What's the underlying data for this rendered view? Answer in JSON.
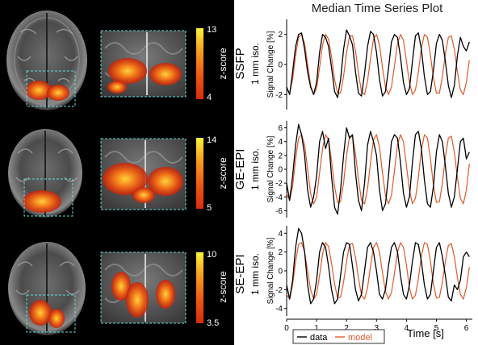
{
  "figure": {
    "title": "Median Time Series Plot",
    "ylabel": "Signal Change [%]",
    "xlabel": "Time [s]",
    "colorbar_label": "z-score",
    "legend": [
      {
        "label": "data",
        "color": "#000000"
      },
      {
        "label": "model",
        "color": "#e05a2b"
      }
    ]
  },
  "rows": [
    {
      "method": "SSFP",
      "resolution": "1 mm iso.",
      "cbar_max": "13",
      "cbar_min": "4"
    },
    {
      "method": "GE-EPI",
      "resolution": "1 mm iso.",
      "cbar_max": "14",
      "cbar_min": "5"
    },
    {
      "method": "SE-EPI",
      "resolution": "1 mm iso.",
      "cbar_max": "10",
      "cbar_min": "3.5"
    }
  ],
  "chart_data": [
    {
      "type": "line",
      "ylabel": "Signal Change [%]",
      "ylim": [
        -3,
        3
      ],
      "yticks": [
        -2,
        0,
        2
      ],
      "xlim": [
        0,
        6.2
      ],
      "xticks": [
        0,
        1,
        2,
        3,
        4,
        5,
        6
      ],
      "series": [
        {
          "name": "data",
          "x": [
            0,
            0.1,
            0.2,
            0.3,
            0.4,
            0.5,
            0.6,
            0.7,
            0.8,
            0.9,
            1.0,
            1.1,
            1.2,
            1.3,
            1.4,
            1.5,
            1.6,
            1.7,
            1.8,
            1.9,
            2.0,
            2.1,
            2.2,
            2.3,
            2.4,
            2.5,
            2.6,
            2.7,
            2.8,
            2.9,
            3.0,
            3.1,
            3.2,
            3.3,
            3.4,
            3.5,
            3.6,
            3.7,
            3.8,
            3.9,
            4.0,
            4.1,
            4.2,
            4.3,
            4.4,
            4.5,
            4.6,
            4.7,
            4.8,
            4.9,
            5.0,
            5.1,
            5.2,
            5.3,
            5.4,
            5.5,
            5.6,
            5.7,
            5.8,
            5.9,
            6.0,
            6.1
          ],
          "y": [
            -1.5,
            -2.0,
            -0.5,
            1.2,
            2.0,
            2.1,
            1.0,
            -0.5,
            -1.5,
            -2.0,
            -1.2,
            0.8,
            2.0,
            1.8,
            1.2,
            -0.2,
            -1.8,
            -2.2,
            -1.0,
            1.0,
            2.3,
            1.9,
            1.3,
            -0.5,
            -1.9,
            -2.1,
            -0.6,
            1.2,
            2.2,
            2.0,
            0.8,
            -1.0,
            -2.1,
            -1.8,
            -0.3,
            1.5,
            2.0,
            1.8,
            0.5,
            -1.2,
            -2.0,
            -1.6,
            0.2,
            1.9,
            2.1,
            1.0,
            -0.8,
            -2.0,
            -1.8,
            -0.4,
            1.4,
            2.0,
            1.6,
            0.2,
            -1.4,
            -2.2,
            -1.4,
            0.6,
            1.8,
            1.2,
            0.9,
            1.5
          ]
        },
        {
          "name": "model",
          "x": [
            0,
            0.1,
            0.2,
            0.3,
            0.4,
            0.5,
            0.6,
            0.7,
            0.8,
            0.9,
            1.0,
            1.1,
            1.2,
            1.3,
            1.4,
            1.5,
            1.6,
            1.7,
            1.8,
            1.9,
            2.0,
            2.1,
            2.2,
            2.3,
            2.4,
            2.5,
            2.6,
            2.7,
            2.8,
            2.9,
            3.0,
            3.1,
            3.2,
            3.3,
            3.4,
            3.5,
            3.6,
            3.7,
            3.8,
            3.9,
            4.0,
            4.1,
            4.2,
            4.3,
            4.4,
            4.5,
            4.6,
            4.7,
            4.8,
            4.9,
            5.0,
            5.1,
            5.2,
            5.3,
            5.4,
            5.5,
            5.6,
            5.7,
            5.8,
            5.9,
            6.0,
            6.1
          ],
          "y": [
            -1.6,
            -1.9,
            -1.0,
            0.6,
            1.8,
            2.0,
            1.4,
            0.0,
            -1.4,
            -2.0,
            -1.6,
            -0.2,
            1.3,
            2.0,
            1.7,
            0.5,
            -1.0,
            -1.9,
            -1.9,
            -0.8,
            0.8,
            1.9,
            1.9,
            0.9,
            -0.6,
            -1.8,
            -2.0,
            -1.1,
            0.4,
            1.7,
            2.0,
            1.3,
            -0.2,
            -1.5,
            -2.0,
            -1.5,
            -0.1,
            1.4,
            2.0,
            1.6,
            0.2,
            -1.2,
            -2.0,
            -1.7,
            -0.5,
            1.1,
            2.0,
            1.8,
            0.6,
            -0.9,
            -1.9,
            -1.9,
            -0.8,
            0.7,
            1.8,
            1.9,
            1.0,
            -0.5,
            -1.7,
            -2.0,
            -1.2,
            0.3
          ]
        }
      ]
    },
    {
      "type": "line",
      "ylabel": "Signal Change [%]",
      "ylim": [
        -7,
        7
      ],
      "yticks": [
        -6,
        -4,
        -2,
        0,
        2,
        4,
        6
      ],
      "xlim": [
        0,
        6.2
      ],
      "xticks": [
        0,
        1,
        2,
        3,
        4,
        5,
        6
      ],
      "series": [
        {
          "name": "data",
          "x": [
            0,
            0.1,
            0.2,
            0.3,
            0.4,
            0.5,
            0.6,
            0.7,
            0.8,
            0.9,
            1.0,
            1.1,
            1.2,
            1.3,
            1.4,
            1.5,
            1.6,
            1.7,
            1.8,
            1.9,
            2.0,
            2.1,
            2.2,
            2.3,
            2.4,
            2.5,
            2.6,
            2.7,
            2.8,
            2.9,
            3.0,
            3.1,
            3.2,
            3.3,
            3.4,
            3.5,
            3.6,
            3.7,
            3.8,
            3.9,
            4.0,
            4.1,
            4.2,
            4.3,
            4.4,
            4.5,
            4.6,
            4.7,
            4.8,
            4.9,
            5.0,
            5.1,
            5.2,
            5.3,
            5.4,
            5.5,
            5.6,
            5.7,
            5.8,
            5.9,
            6.0,
            6.1
          ],
          "y": [
            -2.0,
            -4.5,
            -1.0,
            3.5,
            6.5,
            5.0,
            2.0,
            -3.0,
            -5.5,
            -4.0,
            -1.0,
            4.0,
            5.5,
            3.0,
            4.5,
            -1.0,
            -5.5,
            -6.5,
            -3.0,
            2.0,
            6.0,
            4.5,
            5.0,
            -0.5,
            -4.5,
            -6.0,
            -2.0,
            3.5,
            5.5,
            4.0,
            2.0,
            -3.0,
            -6.0,
            -5.0,
            -1.0,
            4.0,
            5.0,
            4.5,
            1.0,
            -3.5,
            -5.5,
            -4.0,
            1.0,
            5.0,
            5.5,
            3.0,
            -1.5,
            -5.0,
            -5.5,
            -2.5,
            2.5,
            5.0,
            4.0,
            0.5,
            -3.5,
            -5.5,
            -4.0,
            0.0,
            4.0,
            4.5,
            1.5,
            2.5
          ]
        },
        {
          "name": "model",
          "x": [
            0,
            0.1,
            0.2,
            0.3,
            0.4,
            0.5,
            0.6,
            0.7,
            0.8,
            0.9,
            1.0,
            1.1,
            1.2,
            1.3,
            1.4,
            1.5,
            1.6,
            1.7,
            1.8,
            1.9,
            2.0,
            2.1,
            2.2,
            2.3,
            2.4,
            2.5,
            2.6,
            2.7,
            2.8,
            2.9,
            3.0,
            3.1,
            3.2,
            3.3,
            3.4,
            3.5,
            3.6,
            3.7,
            3.8,
            3.9,
            4.0,
            4.1,
            4.2,
            4.3,
            4.4,
            4.5,
            4.6,
            4.7,
            4.8,
            4.9,
            5.0,
            5.1,
            5.2,
            5.3,
            5.4,
            5.5,
            5.6,
            5.7,
            5.8,
            5.9,
            6.0,
            6.1
          ],
          "y": [
            -3.5,
            -4.5,
            -2.5,
            1.5,
            4.5,
            5.0,
            3.5,
            0.0,
            -3.5,
            -5.0,
            -4.0,
            -0.5,
            3.0,
            5.0,
            4.3,
            1.2,
            -2.5,
            -4.8,
            -4.7,
            -2.0,
            2.0,
            4.8,
            4.7,
            2.2,
            -1.5,
            -4.5,
            -5.0,
            -2.8,
            1.0,
            4.3,
            5.0,
            3.2,
            -0.5,
            -3.8,
            -5.0,
            -3.8,
            -0.3,
            3.5,
            5.0,
            4.0,
            0.5,
            -3.0,
            -5.0,
            -4.2,
            -1.2,
            2.8,
            5.0,
            4.5,
            1.5,
            -2.3,
            -4.8,
            -4.7,
            -2.0,
            1.8,
            4.5,
            4.8,
            2.5,
            -1.2,
            -4.2,
            -5.0,
            -3.0,
            0.8
          ]
        }
      ]
    },
    {
      "type": "line",
      "ylabel": "Signal Change [%]",
      "ylim": [
        -4.8,
        4.8
      ],
      "yticks": [
        -4,
        -2,
        0,
        2,
        4
      ],
      "xlim": [
        0,
        6.2
      ],
      "xticks": [
        0,
        1,
        2,
        3,
        4,
        5,
        6
      ],
      "series": [
        {
          "name": "data",
          "x": [
            0,
            0.1,
            0.2,
            0.3,
            0.4,
            0.5,
            0.6,
            0.7,
            0.8,
            0.9,
            1.0,
            1.1,
            1.2,
            1.3,
            1.4,
            1.5,
            1.6,
            1.7,
            1.8,
            1.9,
            2.0,
            2.1,
            2.2,
            2.3,
            2.4,
            2.5,
            2.6,
            2.7,
            2.8,
            2.9,
            3.0,
            3.1,
            3.2,
            3.3,
            3.4,
            3.5,
            3.6,
            3.7,
            3.8,
            3.9,
            4.0,
            4.1,
            4.2,
            4.3,
            4.4,
            4.5,
            4.6,
            4.7,
            4.8,
            4.9,
            5.0,
            5.1,
            5.2,
            5.3,
            5.4,
            5.5,
            5.6,
            5.7,
            5.8,
            5.9,
            6.0,
            6.1
          ],
          "y": [
            -1.5,
            -3.0,
            -1.0,
            2.5,
            4.5,
            4.0,
            2.0,
            -1.5,
            -3.5,
            -3.0,
            -1.0,
            2.0,
            3.0,
            2.5,
            0.5,
            -2.0,
            -3.5,
            -3.0,
            -0.5,
            2.0,
            3.0,
            2.8,
            0.5,
            -2.0,
            -3.2,
            -2.5,
            0.0,
            2.5,
            3.0,
            2.0,
            0.0,
            -2.5,
            -3.0,
            -2.0,
            0.5,
            2.5,
            3.0,
            2.0,
            -0.5,
            -2.5,
            -3.0,
            -1.5,
            1.0,
            3.0,
            2.8,
            1.0,
            -1.5,
            -3.0,
            -2.5,
            0.0,
            2.5,
            3.0,
            1.5,
            -0.5,
            -2.8,
            -3.2,
            -1.5,
            -2.0,
            -1.0,
            1.5,
            2.0,
            1.5
          ]
        },
        {
          "name": "model",
          "x": [
            0,
            0.1,
            0.2,
            0.3,
            0.4,
            0.5,
            0.6,
            0.7,
            0.8,
            0.9,
            1.0,
            1.1,
            1.2,
            1.3,
            1.4,
            1.5,
            1.6,
            1.7,
            1.8,
            1.9,
            2.0,
            2.1,
            2.2,
            2.3,
            2.4,
            2.5,
            2.6,
            2.7,
            2.8,
            2.9,
            3.0,
            3.1,
            3.2,
            3.3,
            3.4,
            3.5,
            3.6,
            3.7,
            3.8,
            3.9,
            4.0,
            4.1,
            4.2,
            4.3,
            4.4,
            4.5,
            4.6,
            4.7,
            4.8,
            4.9,
            5.0,
            5.1,
            5.2,
            5.3,
            5.4,
            5.5,
            5.6,
            5.7,
            5.8,
            5.9,
            6.0,
            6.1
          ],
          "y": [
            -2.5,
            -3.0,
            -1.5,
            1.0,
            2.8,
            3.0,
            2.0,
            0.0,
            -2.0,
            -3.0,
            -2.5,
            -0.5,
            1.8,
            3.0,
            2.6,
            0.8,
            -1.4,
            -2.9,
            -2.8,
            -1.2,
            1.0,
            2.8,
            2.9,
            1.4,
            -0.8,
            -2.6,
            -3.0,
            -1.8,
            0.5,
            2.5,
            3.0,
            2.0,
            -0.2,
            -2.2,
            -3.0,
            -2.3,
            -0.3,
            2.0,
            3.0,
            2.5,
            0.6,
            -1.8,
            -3.0,
            -2.6,
            -0.8,
            1.6,
            3.0,
            2.8,
            1.0,
            -1.4,
            -2.9,
            -2.8,
            -1.2,
            1.0,
            2.7,
            2.9,
            1.5,
            -0.7,
            -2.5,
            -3.0,
            -1.8,
            0.4
          ]
        }
      ]
    }
  ]
}
